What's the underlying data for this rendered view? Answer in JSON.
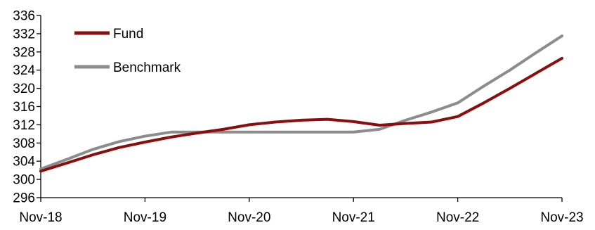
{
  "chart_data": {
    "type": "line",
    "title": "",
    "xlabel": "",
    "ylabel": "",
    "x_ticks": [
      "Nov-18",
      "Nov-19",
      "Nov-20",
      "Nov-21",
      "Nov-22",
      "Nov-23"
    ],
    "x_range": [
      "Nov-18",
      "Nov-23"
    ],
    "y_ticks": [
      296,
      300,
      304,
      308,
      312,
      316,
      320,
      324,
      328,
      332,
      336
    ],
    "ylim": [
      296,
      336
    ],
    "grid": false,
    "legend_position": "top-left",
    "x": [
      "Nov-18",
      "Feb-19",
      "May-19",
      "Aug-19",
      "Nov-19",
      "Feb-20",
      "May-20",
      "Aug-20",
      "Nov-20",
      "Feb-21",
      "May-21",
      "Aug-21",
      "Nov-21",
      "Feb-22",
      "May-22",
      "Aug-22",
      "Nov-22",
      "Feb-23",
      "May-23",
      "Aug-23",
      "Nov-23"
    ],
    "series": [
      {
        "name": "Fund",
        "color": "#8B0D0D",
        "values": [
          301.8,
          303.6,
          305.4,
          307.0,
          308.2,
          309.3,
          310.2,
          311.0,
          312.0,
          312.6,
          313.0,
          313.2,
          312.7,
          311.9,
          312.3,
          312.6,
          313.8,
          316.8,
          320.0,
          323.3,
          326.6
        ]
      },
      {
        "name": "Benchmark",
        "color": "#8C8C8C",
        "values": [
          302.3,
          304.4,
          306.6,
          308.3,
          309.5,
          310.4,
          310.4,
          310.4,
          310.4,
          310.4,
          310.4,
          310.4,
          310.4,
          311.0,
          313.0,
          314.8,
          316.8,
          320.5,
          324.0,
          327.8,
          331.5
        ]
      }
    ]
  }
}
